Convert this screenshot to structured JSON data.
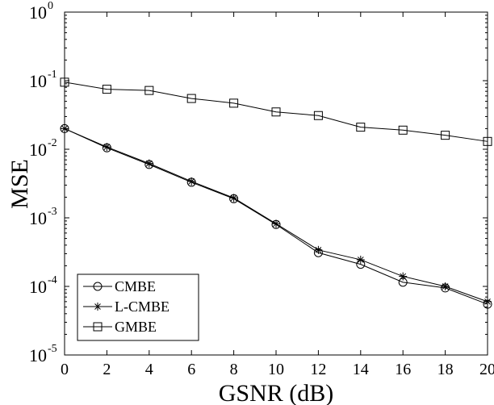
{
  "chart_data": {
    "type": "line",
    "xlabel": "GSNR (dB)",
    "ylabel": "MSE",
    "xlim": [
      0,
      20
    ],
    "ylim": [
      1e-05,
      1
    ],
    "y_scale": "log",
    "grid": false,
    "legend_position": "bottom-left",
    "x_ticks": [
      0,
      2,
      4,
      6,
      8,
      10,
      12,
      14,
      16,
      18,
      20
    ],
    "x_tick_labels": [
      "0",
      "2",
      "4",
      "6",
      "8",
      "10",
      "12",
      "14",
      "16",
      "18",
      "20"
    ],
    "y_ticks": [
      {
        "value": 1,
        "base": "10",
        "exp": "0"
      },
      {
        "value": 0.1,
        "base": "10",
        "exp": "-1"
      },
      {
        "value": 0.01,
        "base": "10",
        "exp": "-2"
      },
      {
        "value": 0.001,
        "base": "10",
        "exp": "-3"
      },
      {
        "value": 0.0001,
        "base": "10",
        "exp": "-4"
      },
      {
        "value": 1e-05,
        "base": "10",
        "exp": "-5"
      }
    ],
    "x": [
      0,
      2,
      4,
      6,
      8,
      10,
      12,
      14,
      16,
      18,
      20
    ],
    "series": [
      {
        "name": "CMBE",
        "marker": "circle",
        "values": [
          0.02,
          0.0105,
          0.006,
          0.0033,
          0.0019,
          0.0008,
          0.00031,
          0.00021,
          0.000115,
          9.5e-05,
          5.5e-05
        ]
      },
      {
        "name": "L-CMBE",
        "marker": "star",
        "values": [
          0.02,
          0.0108,
          0.0062,
          0.0034,
          0.00195,
          0.00082,
          0.00034,
          0.000245,
          0.00014,
          0.0001,
          6e-05
        ]
      },
      {
        "name": "GMBE",
        "marker": "square",
        "values": [
          0.095,
          0.075,
          0.072,
          0.055,
          0.047,
          0.035,
          0.031,
          0.021,
          0.019,
          0.016,
          0.013
        ]
      }
    ],
    "line_color": "#000000"
  }
}
